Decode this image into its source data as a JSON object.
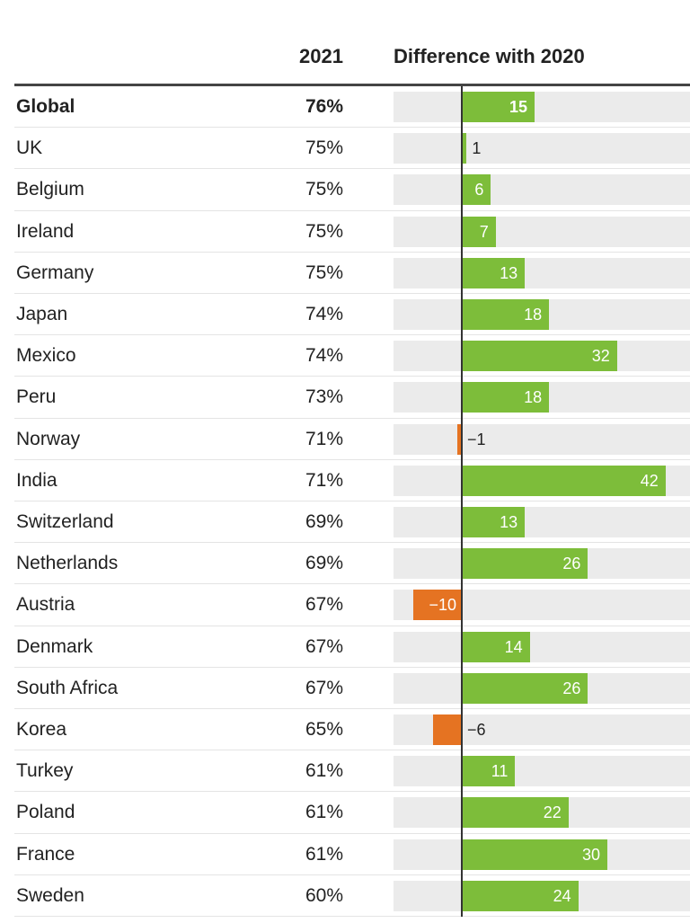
{
  "header": {
    "col_2021": "2021",
    "col_diff": "Difference with 2020"
  },
  "colors": {
    "positive": "#7dbd3a",
    "negative": "#e57322",
    "track": "#ebebeb",
    "axis": "#333333"
  },
  "chart_data": {
    "type": "bar",
    "orientation": "horizontal",
    "columns": [
      "2021",
      "Difference with 2020"
    ],
    "categories": [
      "Global",
      "UK",
      "Belgium",
      "Ireland",
      "Germany",
      "Japan",
      "Mexico",
      "Peru",
      "Norway",
      "India",
      "Switzerland",
      "Netherlands",
      "Austria",
      "Denmark",
      "South Africa",
      "Korea",
      "Turkey",
      "Poland",
      "France",
      "Sweden"
    ],
    "values_2021": [
      "76%",
      "75%",
      "75%",
      "75%",
      "75%",
      "74%",
      "74%",
      "73%",
      "71%",
      "71%",
      "69%",
      "69%",
      "67%",
      "67%",
      "67%",
      "65%",
      "61%",
      "61%",
      "61%",
      "60%"
    ],
    "difference_labels": [
      "15",
      "1",
      "6",
      "7",
      "13",
      "18",
      "32",
      "18",
      "−1",
      "42",
      "13",
      "26",
      "−10",
      "14",
      "26",
      "−6",
      "11",
      "22",
      "30",
      "24"
    ],
    "difference_values": [
      15,
      1,
      6,
      7,
      13,
      18,
      32,
      18,
      -1,
      42,
      13,
      26,
      -10,
      14,
      26,
      -6,
      11,
      22,
      30,
      24
    ],
    "highlighted": [
      "Global"
    ],
    "xlim": [
      -14,
      49
    ]
  }
}
